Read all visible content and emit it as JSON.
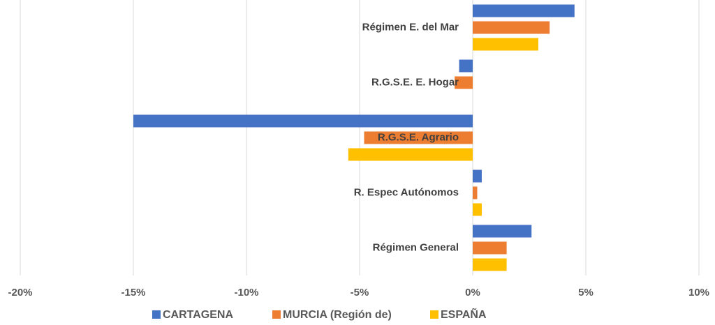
{
  "chart_data": {
    "type": "barh",
    "categories": [
      "Régimen E. del Mar",
      "R.G.S.E. E. Hogar",
      "R.G.S.E. Agrario",
      "R. Espec  Autónomos",
      "Régimen General"
    ],
    "series": [
      {
        "name": "CARTAGENA",
        "color": "#4472c4",
        "values": [
          4.5,
          -0.6,
          -15.0,
          0.4,
          2.6
        ]
      },
      {
        "name": "MURCIA (Región de)",
        "color": "#ed7d31",
        "values": [
          3.4,
          -0.8,
          -4.8,
          0.2,
          1.5
        ]
      },
      {
        "name": "ESPAÑA",
        "color": "#ffc000",
        "values": [
          2.9,
          0,
          -5.5,
          0.4,
          1.5
        ]
      }
    ],
    "xlim": [
      -20,
      10
    ],
    "xticks": [
      {
        "value": -20,
        "label": "-20%"
      },
      {
        "value": -15,
        "label": "-15%"
      },
      {
        "value": -10,
        "label": "-10%"
      },
      {
        "value": -5,
        "label": "-5%"
      },
      {
        "value": 0,
        "label": "0%"
      },
      {
        "value": 5,
        "label": "5%"
      },
      {
        "value": 10,
        "label": "10%"
      }
    ],
    "grid": true,
    "legend": "bottom"
  }
}
